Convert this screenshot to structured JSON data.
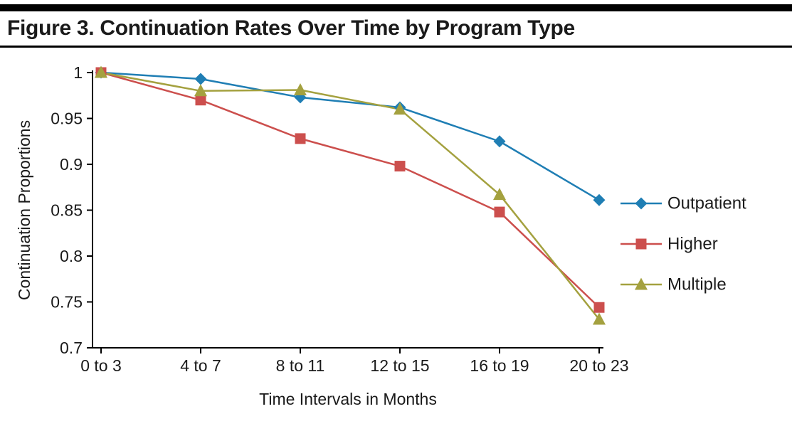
{
  "header": {
    "title": "Figure 3. Continuation Rates Over Time by Program Type"
  },
  "colors": {
    "text": "#1a1a1a",
    "axis": "#000000",
    "rule": "#000000",
    "series_blue": "#1F7EB4",
    "series_red": "#CC4F4D",
    "series_olive": "#A4A13F"
  },
  "chart_data": {
    "type": "line",
    "title": "Figure 3. Continuation Rates Over Time by Program Type",
    "xlabel": "Time Intervals in Months",
    "ylabel": "Continuation Proportions",
    "categories": [
      "0 to 3",
      "4 to 7",
      "8 to 11",
      "12 to 15",
      "16 to 19",
      "20 to 23"
    ],
    "ylim": [
      0.7,
      1.0
    ],
    "ytick_values": [
      1,
      0.95,
      0.9,
      0.85,
      0.8,
      0.75,
      0.7
    ],
    "ytick_labels": [
      "1",
      "0.95",
      "0.9",
      "0.85",
      "0.8",
      "0.75",
      "0.7"
    ],
    "grid": false,
    "legend_position": "right",
    "series": [
      {
        "name": "Outpatient",
        "marker": "diamond",
        "color": "#1F7EB4",
        "values": [
          1.0,
          0.993,
          0.973,
          0.962,
          0.925,
          0.861
        ]
      },
      {
        "name": "Higher",
        "marker": "square",
        "color": "#CC4F4D",
        "values": [
          1.0,
          0.97,
          0.928,
          0.898,
          0.848,
          0.744
        ]
      },
      {
        "name": "Multiple",
        "marker": "triangle",
        "color": "#A4A13F",
        "values": [
          1.0,
          0.98,
          0.981,
          0.96,
          0.867,
          0.731
        ]
      }
    ]
  }
}
